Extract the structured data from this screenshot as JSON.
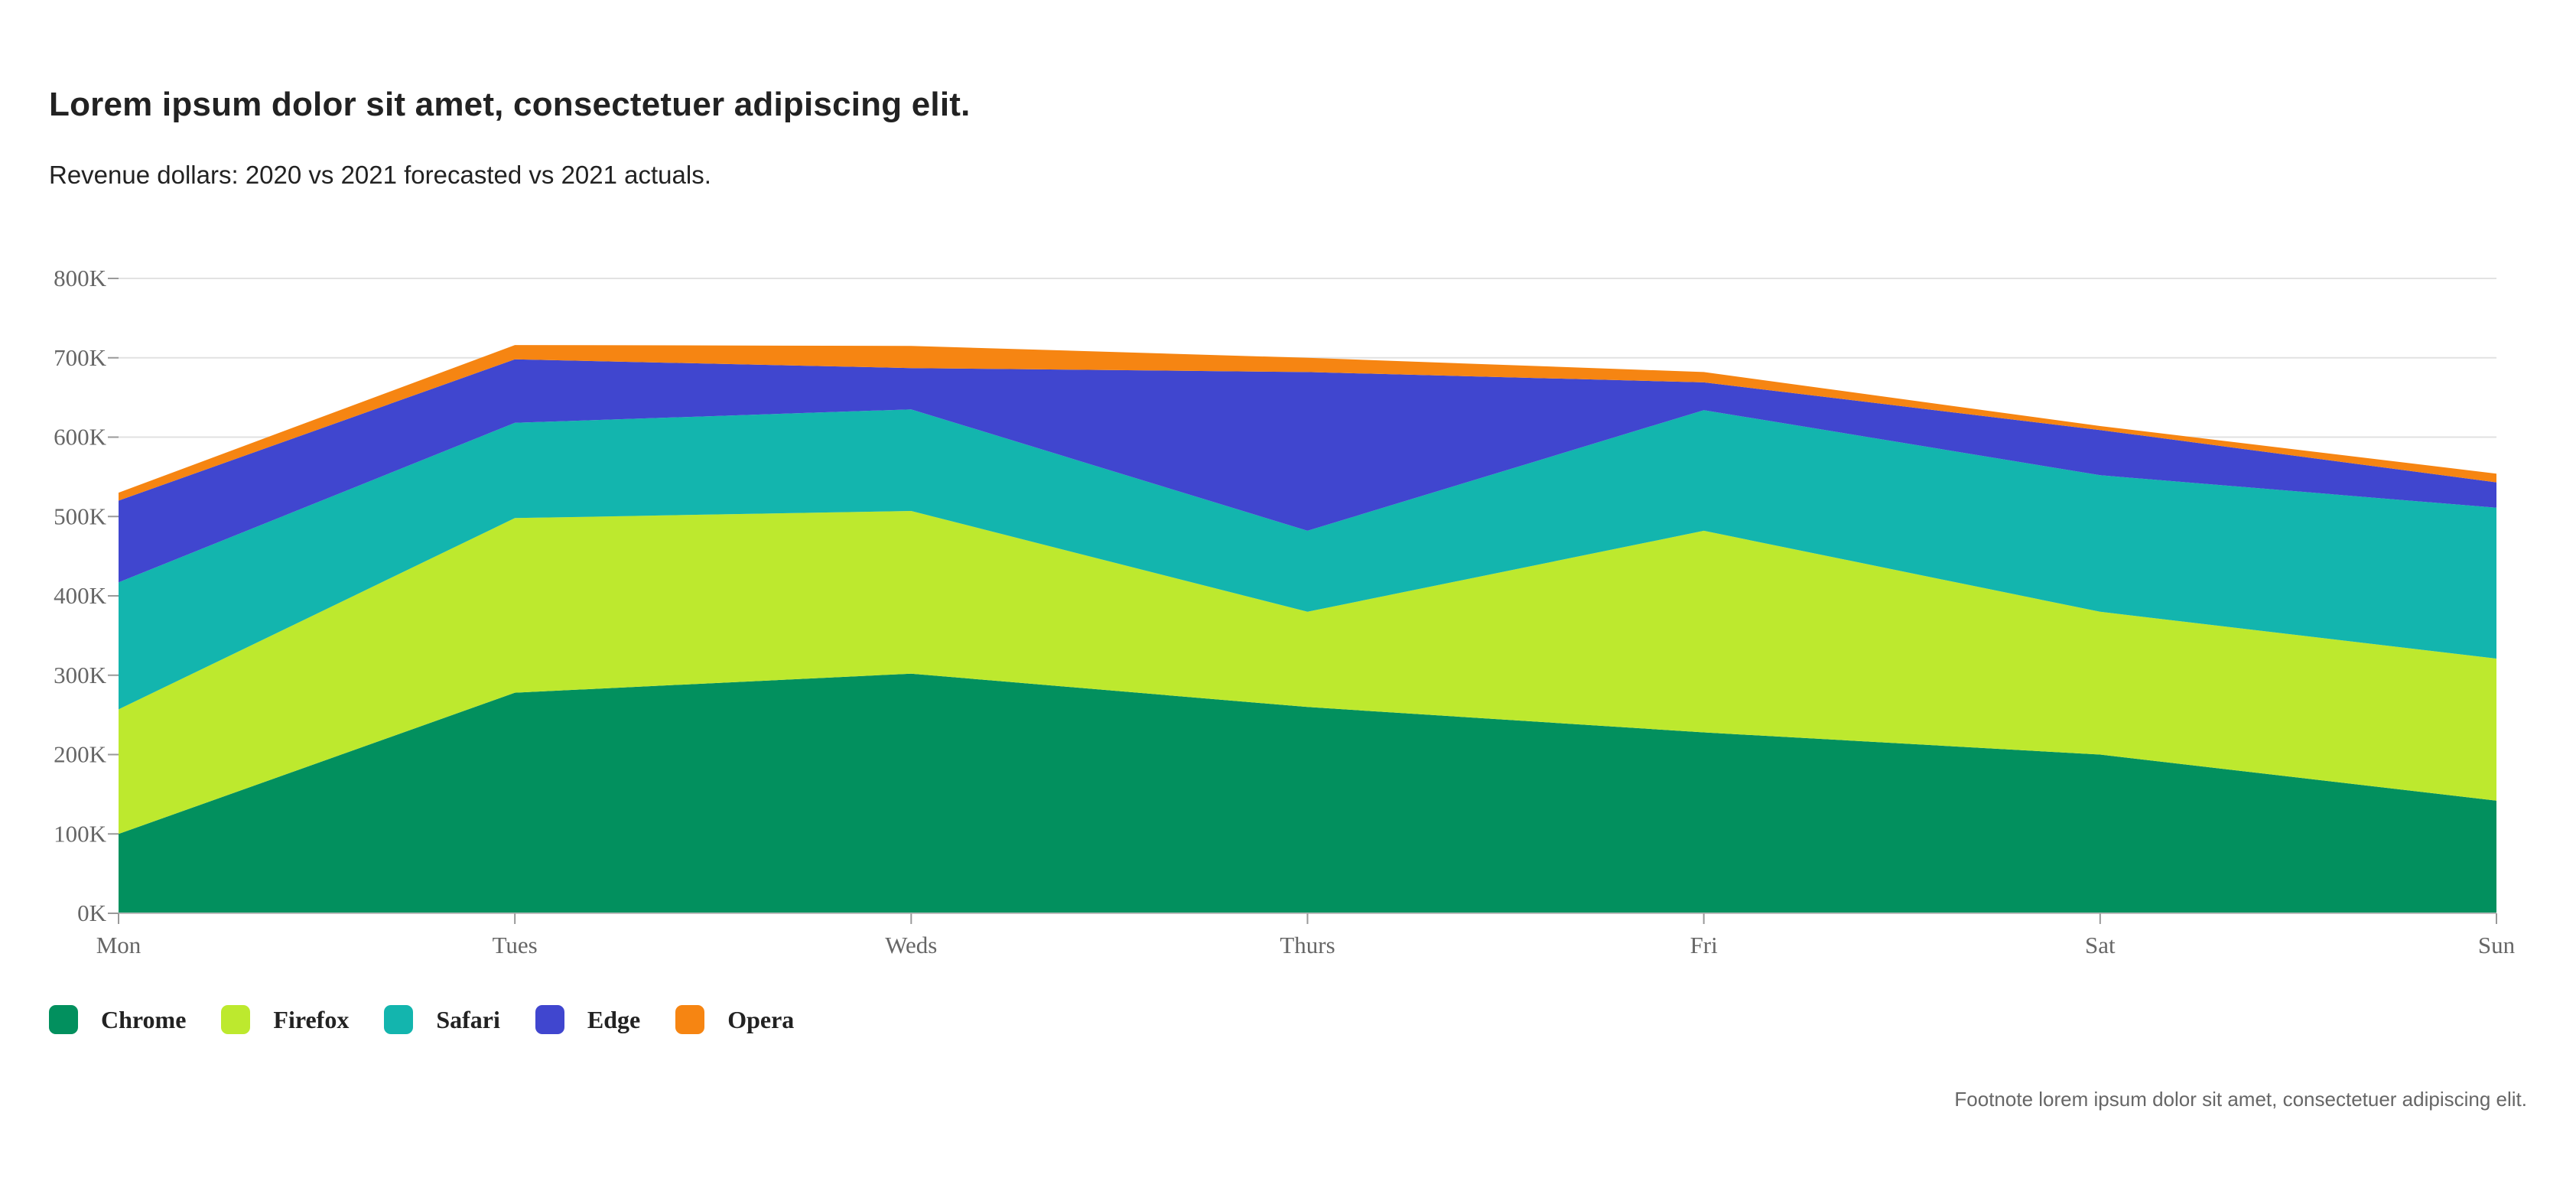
{
  "title": "Lorem ipsum dolor sit amet, consectetuer adipiscing elit.",
  "subtitle": "Revenue dollars: 2020 vs 2021 forecasted vs 2021 actuals.",
  "footnote": "Footnote lorem ipsum dolor sit amet, consectetuer adipiscing elit.",
  "chart_data": {
    "type": "area",
    "stacked": true,
    "categories": [
      "Mon",
      "Tues",
      "Weds",
      "Thurs",
      "Fri",
      "Sat",
      "Sun"
    ],
    "series": [
      {
        "name": "Chrome",
        "color": "#02905e",
        "values": [
          100000,
          278000,
          302000,
          260000,
          228000,
          200000,
          142000
        ]
      },
      {
        "name": "Firefox",
        "color": "#bde92e",
        "values": [
          157000,
          220000,
          205000,
          120000,
          254000,
          180000,
          179000
        ]
      },
      {
        "name": "Safari",
        "color": "#13b5ae",
        "values": [
          160000,
          120000,
          128000,
          102000,
          152000,
          172000,
          190000
        ]
      },
      {
        "name": "Edge",
        "color": "#4046cf",
        "values": [
          103000,
          80000,
          52000,
          200000,
          35000,
          57000,
          32000
        ]
      },
      {
        "name": "Opera",
        "color": "#f68512",
        "values": [
          10000,
          18000,
          28000,
          18000,
          13000,
          5000,
          11000
        ]
      }
    ],
    "yticks": [
      "0K",
      "100K",
      "200K",
      "300K",
      "400K",
      "500K",
      "600K",
      "700K",
      "800K"
    ],
    "ylim": [
      0,
      800000
    ],
    "grid": true,
    "legend_position": "bottom-left",
    "xlabel": "",
    "ylabel": ""
  }
}
